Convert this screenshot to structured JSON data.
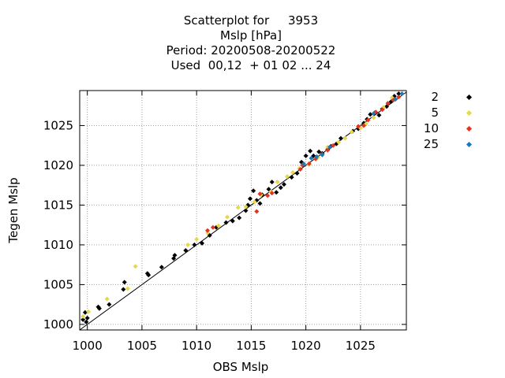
{
  "chart_data": {
    "type": "scatter",
    "title_lines": [
      "Scatterplot for     3953",
      "Mslp [hPa]",
      "Period: 20200508-20200522",
      "Used  00,12  + 01 02 ... 24"
    ],
    "xlabel": "OBS Mslp",
    "ylabel": "Tegen Mslp",
    "xlim": [
      999.3,
      1029.2
    ],
    "ylim": [
      999.3,
      1029.4
    ],
    "xticks": [
      1000,
      1005,
      1010,
      1015,
      1020,
      1025
    ],
    "yticks": [
      1000,
      1005,
      1010,
      1015,
      1020,
      1025
    ],
    "grid": true,
    "legend_position": "right",
    "diagonal_line": [
      [
        999.3,
        999.3
      ],
      [
        1029.2,
        1029.2
      ]
    ],
    "series": [
      {
        "name": "2",
        "color": "#000000",
        "points": [
          [
            999.6,
            1000.6
          ],
          [
            999.8,
            1001.5
          ],
          [
            1000.0,
            1000.8
          ],
          [
            999.9,
            1000.3
          ],
          [
            1001.0,
            1002.2
          ],
          [
            1001.1,
            1002.0
          ],
          [
            1002.0,
            1002.5
          ],
          [
            1003.4,
            1005.3
          ],
          [
            1003.3,
            1004.4
          ],
          [
            1005.5,
            1006.4
          ],
          [
            1005.6,
            1006.2
          ],
          [
            1006.8,
            1007.2
          ],
          [
            1007.9,
            1008.3
          ],
          [
            1008.0,
            1008.7
          ],
          [
            1009.0,
            1009.3
          ],
          [
            1009.8,
            1010.0
          ],
          [
            1010.5,
            1010.2
          ],
          [
            1011.2,
            1011.2
          ],
          [
            1011.8,
            1012.2
          ],
          [
            1012.7,
            1012.8
          ],
          [
            1013.3,
            1013.0
          ],
          [
            1013.9,
            1013.4
          ],
          [
            1014.5,
            1014.3
          ],
          [
            1014.7,
            1015.0
          ],
          [
            1014.9,
            1015.8
          ],
          [
            1015.2,
            1016.8
          ],
          [
            1015.5,
            1015.6
          ],
          [
            1015.8,
            1015.2
          ],
          [
            1016.0,
            1016.3
          ],
          [
            1016.6,
            1017.0
          ],
          [
            1016.9,
            1017.9
          ],
          [
            1017.3,
            1016.6
          ],
          [
            1017.7,
            1017.2
          ],
          [
            1018.0,
            1017.6
          ],
          [
            1018.7,
            1018.5
          ],
          [
            1019.2,
            1019.0
          ],
          [
            1019.6,
            1020.4
          ],
          [
            1020.0,
            1021.2
          ],
          [
            1020.4,
            1021.8
          ],
          [
            1020.7,
            1021.2
          ],
          [
            1021.2,
            1021.7
          ],
          [
            1021.5,
            1021.5
          ],
          [
            1022.0,
            1022.0
          ],
          [
            1022.3,
            1022.4
          ],
          [
            1022.8,
            1022.7
          ],
          [
            1023.2,
            1023.4
          ],
          [
            1024.3,
            1024.3
          ],
          [
            1024.8,
            1024.6
          ],
          [
            1025.3,
            1025.3
          ],
          [
            1025.6,
            1025.8
          ],
          [
            1025.9,
            1026.4
          ],
          [
            1026.3,
            1026.6
          ],
          [
            1026.7,
            1026.3
          ],
          [
            1027.0,
            1027.1
          ],
          [
            1027.4,
            1027.4
          ],
          [
            1027.8,
            1028.0
          ],
          [
            1028.1,
            1028.7
          ],
          [
            1028.5,
            1029.0
          ]
        ]
      },
      {
        "name": "5",
        "color": "#e6d84a",
        "points": [
          [
            999.6,
            1001.0
          ],
          [
            1000.1,
            1001.6
          ],
          [
            1001.8,
            1003.2
          ],
          [
            1003.7,
            1004.5
          ],
          [
            1004.4,
            1007.3
          ],
          [
            1009.2,
            1010.0
          ],
          [
            1010.0,
            1010.7
          ],
          [
            1011.0,
            1011.5
          ],
          [
            1012.0,
            1012.4
          ],
          [
            1012.8,
            1013.5
          ],
          [
            1013.8,
            1014.7
          ],
          [
            1014.5,
            1014.8
          ],
          [
            1015.3,
            1015.4
          ],
          [
            1015.9,
            1016.3
          ],
          [
            1016.8,
            1016.7
          ],
          [
            1017.4,
            1017.9
          ],
          [
            1018.3,
            1018.6
          ],
          [
            1018.8,
            1019.1
          ],
          [
            1019.4,
            1019.6
          ],
          [
            1020.3,
            1020.1
          ],
          [
            1021.1,
            1021.0
          ],
          [
            1022.0,
            1022.3
          ],
          [
            1023.0,
            1022.9
          ],
          [
            1023.6,
            1023.4
          ],
          [
            1024.2,
            1024.2
          ],
          [
            1025.0,
            1024.7
          ],
          [
            1025.5,
            1025.2
          ],
          [
            1026.2,
            1026.0
          ],
          [
            1027.1,
            1027.3
          ],
          [
            1027.9,
            1028.5
          ]
        ]
      },
      {
        "name": "10",
        "color": "#e33422",
        "points": [
          [
            1011.0,
            1011.8
          ],
          [
            1011.5,
            1012.2
          ],
          [
            1015.5,
            1014.2
          ],
          [
            1015.8,
            1016.4
          ],
          [
            1016.5,
            1016.2
          ],
          [
            1016.9,
            1016.5
          ],
          [
            1019.5,
            1019.5
          ],
          [
            1019.7,
            1020.0
          ],
          [
            1020.3,
            1020.2
          ],
          [
            1020.9,
            1020.8
          ],
          [
            1021.5,
            1021.4
          ],
          [
            1022.0,
            1021.9
          ],
          [
            1022.5,
            1022.5
          ],
          [
            1024.8,
            1024.9
          ],
          [
            1025.3,
            1025.0
          ],
          [
            1025.7,
            1025.7
          ],
          [
            1026.4,
            1026.7
          ],
          [
            1027.0,
            1027.0
          ],
          [
            1027.5,
            1027.8
          ],
          [
            1028.0,
            1028.2
          ],
          [
            1028.5,
            1028.6
          ]
        ]
      },
      {
        "name": "25",
        "color": "#1f78b4",
        "points": [
          [
            1019.8,
            1020.2
          ],
          [
            1020.5,
            1020.9
          ],
          [
            1021.0,
            1021.1
          ],
          [
            1021.5,
            1021.3
          ],
          [
            1022.2,
            1022.3
          ],
          [
            1026.2,
            1026.5
          ],
          [
            1028.2,
            1028.3
          ],
          [
            1028.8,
            1029.0
          ]
        ]
      }
    ]
  }
}
